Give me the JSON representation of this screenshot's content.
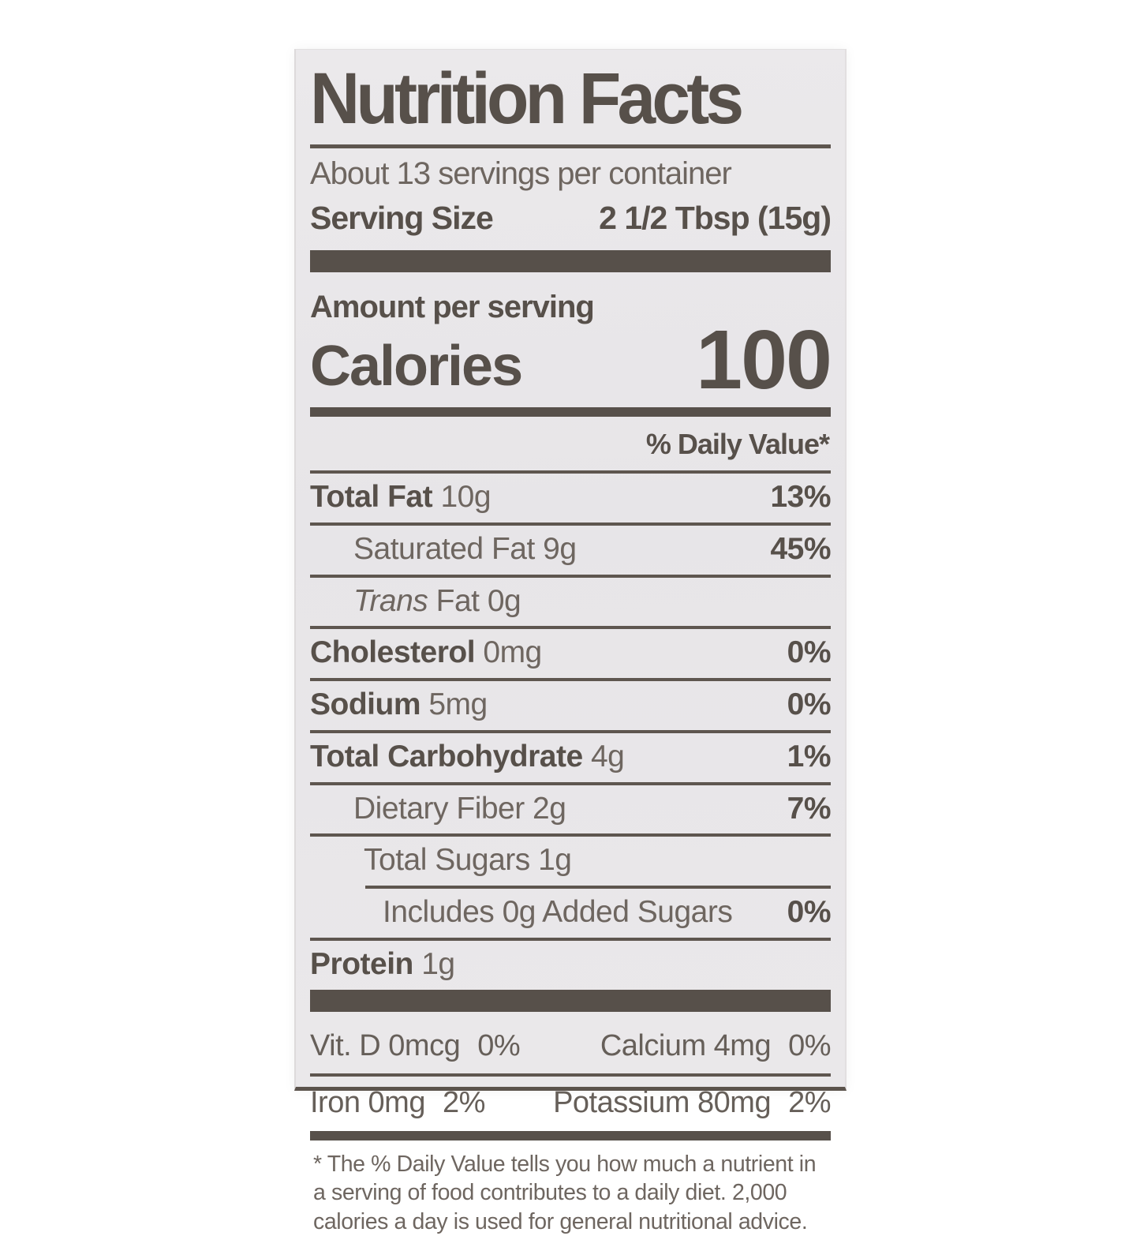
{
  "label": {
    "title": "Nutrition Facts",
    "servings_per_container": "About 13 servings per container",
    "serving_size_label": "Serving Size",
    "serving_size_value": "2 1/2 Tbsp (15g)",
    "amount_per_serving": "Amount per serving",
    "calories_label": "Calories",
    "calories_value": "100",
    "daily_value_header": "% Daily Value*",
    "rows": [
      {
        "bold": "Total Fat",
        "rest": " 10g",
        "dv": "13%"
      },
      {
        "rest": "Saturated Fat 9g",
        "dv": "45%"
      },
      {
        "italic": "Trans",
        "rest": " Fat 0g",
        "dv": ""
      },
      {
        "bold": "Cholesterol",
        "rest": " 0mg",
        "dv": "0%"
      },
      {
        "bold": "Sodium",
        "rest": " 5mg",
        "dv": "0%"
      },
      {
        "bold": "Total Carbohydrate",
        "rest": " 4g",
        "dv": "1%"
      },
      {
        "rest": "Dietary Fiber 2g",
        "dv": "7%"
      },
      {
        "rest": "Total Sugars 1g",
        "dv": ""
      },
      {
        "rest": "Includes 0g Added Sugars",
        "dv": "0%"
      },
      {
        "bold": "Protein",
        "rest": " 1g",
        "dv": ""
      }
    ],
    "micronutrients": [
      {
        "left": {
          "text": "Vit. D 0mcg",
          "dv": "0%"
        },
        "right": {
          "text": "Calcium 4mg",
          "dv": "0%"
        }
      },
      {
        "left": {
          "text": "Iron 0mg",
          "dv": "2%"
        },
        "right": {
          "text": "Potassium 80mg",
          "dv": "2%"
        }
      }
    ],
    "footnote": "* The % Daily Value tells you how much a nutrient in a serving of food contributes to a daily diet. 2,000 calories a day is used for general nutritional advice."
  },
  "colors": {
    "ink": "#57504a",
    "ink_soft": "#6e6660",
    "panel_background": "#e9e7ea",
    "page_background": "#ffffff"
  }
}
